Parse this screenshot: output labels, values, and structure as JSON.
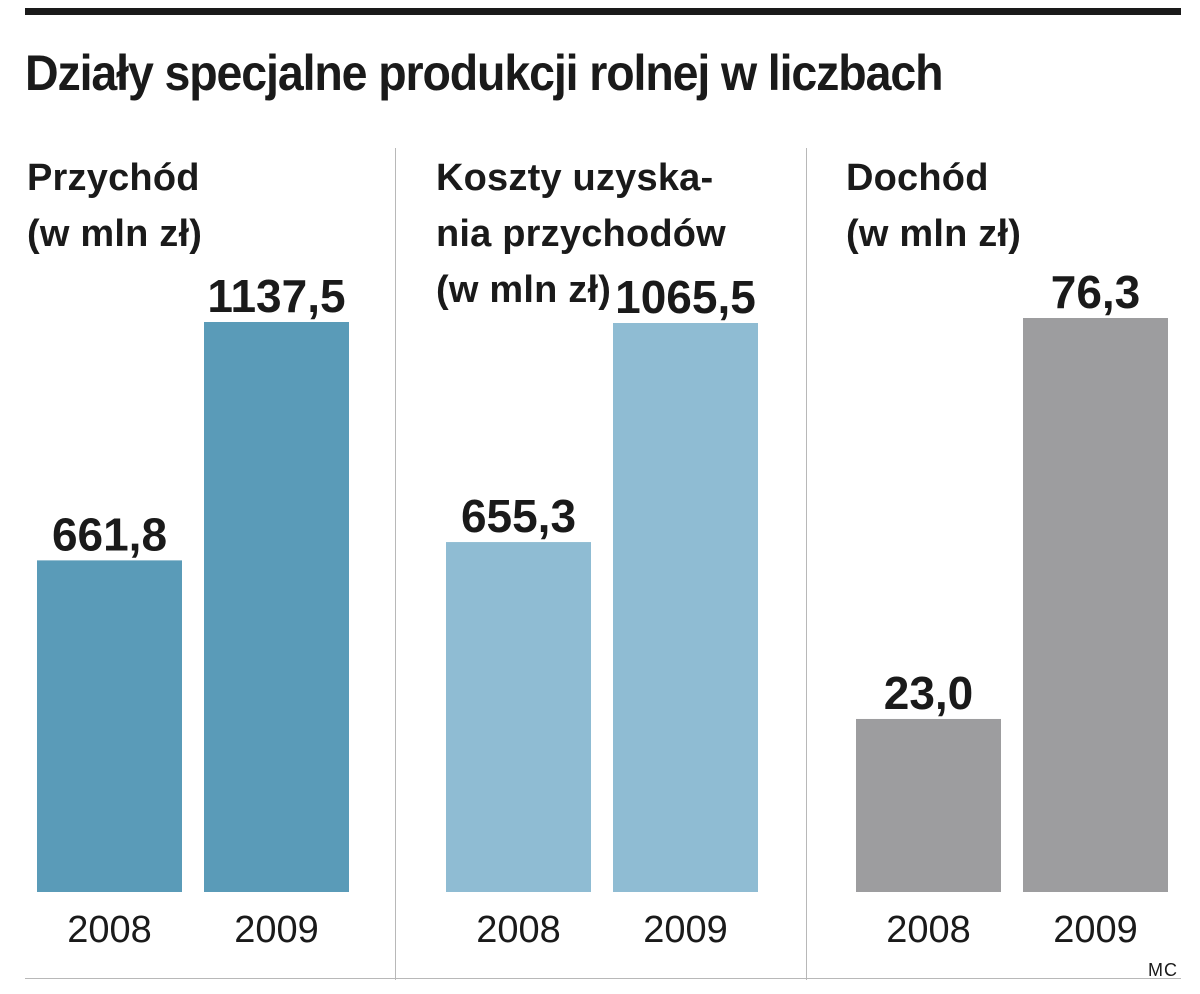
{
  "title": "Działy specjalne produkcji rolnej w liczbach",
  "credit": "MC",
  "chart_data": [
    {
      "type": "bar",
      "title": "Przychód\n(w mln zł)",
      "categories": [
        "2008",
        "2009"
      ],
      "values": [
        661.8,
        1137.5
      ],
      "value_labels": [
        "661,8",
        "1137,5"
      ],
      "color": "#5a9bb8"
    },
    {
      "type": "bar",
      "title": "Koszty uzyska-\nnia przychodów\n(w mln zł)",
      "categories": [
        "2008",
        "2009"
      ],
      "values": [
        655.3,
        1065.5
      ],
      "value_labels": [
        "655,3",
        "1065,5"
      ],
      "color": "#8fbcd3"
    },
    {
      "type": "bar",
      "title": "Dochód\n(w mln zł)",
      "categories": [
        "2008",
        "2009"
      ],
      "values": [
        23.0,
        76.3
      ],
      "value_labels": [
        "23,0",
        "76,3"
      ],
      "color": "#9d9d9f"
    }
  ]
}
